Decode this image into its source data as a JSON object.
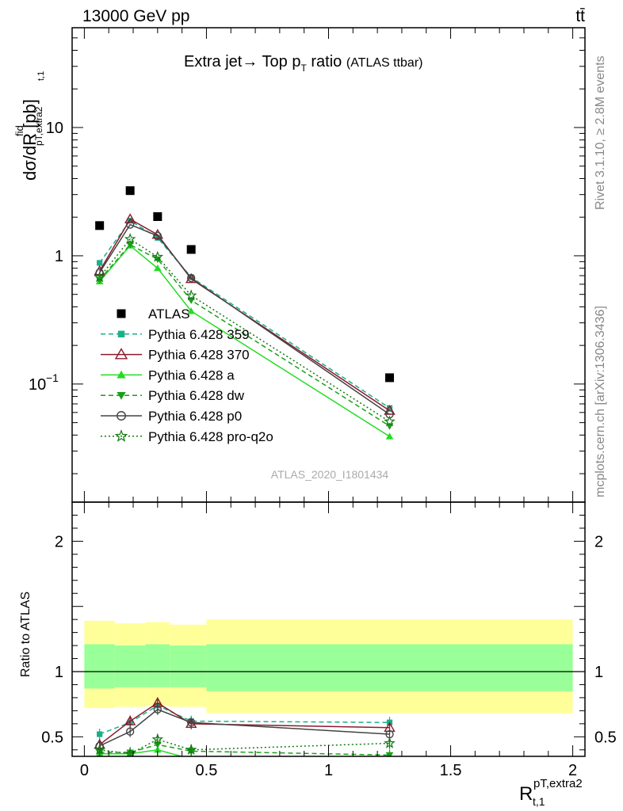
{
  "header": {
    "energy_label": "13000 GeV pp",
    "process_label": "tt̄",
    "title_main": "Extra jet→ Top p",
    "title_sub": "T",
    "title_tail": " ratio",
    "title_paren": "(ATLAS ttbar)",
    "y_axis_label": "dσ/dR [pb]",
    "y_axis_fid": "fid",
    "y_axis_pt": "pT,extra2",
    "y_axis_t1": "t,1",
    "watermark": "ATLAS_2020_I1801434",
    "side_rivet": "Rivet 3.1.10, ≥ 2.8M events",
    "side_mcplots": "mcplots.cern.ch [arXiv:1306.3436]",
    "ratio_ylabel": "Ratio to ATLAS",
    "x_label_main": "R",
    "x_label_sup": "pT,extra2",
    "x_label_sub": "t,1"
  },
  "chart_data": [
    {
      "type": "scatter",
      "panel": "main",
      "yscale": "log",
      "ylim": [
        0.012,
        60
      ],
      "xlim": [
        -0.05,
        2.05
      ],
      "yticks": [
        {
          "v": 0.1,
          "base": "10",
          "exp": "−1"
        },
        {
          "v": 1,
          "label": "1"
        },
        {
          "v": 10,
          "label": "10"
        }
      ],
      "x": [
        0.0625,
        0.1875,
        0.3,
        0.4375,
        1.25
      ],
      "series": [
        {
          "name": "ATLAS",
          "color": "#000000",
          "marker": "square",
          "line": "none",
          "values": [
            1.72,
            3.22,
            2.02,
            1.12,
            0.112
          ]
        },
        {
          "name": "Pythia 6.428 359",
          "color": "#19b08a",
          "marker": "smallsquare",
          "line": "dashed",
          "values": [
            0.88,
            1.88,
            1.38,
            0.68,
            0.065
          ]
        },
        {
          "name": "Pythia 6.428 370",
          "color": "#8b1a2b",
          "marker": "open-triangle",
          "line": "solid",
          "values": [
            0.76,
            1.93,
            1.46,
            0.66,
            0.062
          ]
        },
        {
          "name": "Pythia 6.428 a",
          "color": "#22dd22",
          "marker": "filled-triangle",
          "line": "solid",
          "values": [
            0.63,
            1.2,
            0.8,
            0.37,
            0.039
          ]
        },
        {
          "name": "Pythia 6.428 dw",
          "color": "#18a018",
          "marker": "filled-down-triangle",
          "line": "dashed",
          "values": [
            0.65,
            1.22,
            0.94,
            0.45,
            0.047
          ]
        },
        {
          "name": "Pythia 6.428 p0",
          "color": "#444444",
          "marker": "open-circle",
          "line": "solid",
          "values": [
            0.74,
            1.75,
            1.43,
            0.67,
            0.058
          ]
        },
        {
          "name": "Pythia 6.428 pro-q2o",
          "color": "#127a12",
          "marker": "star",
          "line": "dotted",
          "values": [
            0.68,
            1.35,
            0.98,
            0.49,
            0.051
          ]
        }
      ]
    },
    {
      "type": "line",
      "panel": "ratio",
      "ylim": [
        0.35,
        2.3
      ],
      "yticks": [
        {
          "v": 0.5,
          "label": "0.5"
        },
        {
          "v": 1,
          "label": "1"
        },
        {
          "v": 2,
          "label": "2"
        }
      ],
      "xticks": [
        {
          "v": 0,
          "label": "0"
        },
        {
          "v": 0.5,
          "label": "0.5"
        },
        {
          "v": 1,
          "label": "1"
        },
        {
          "v": 1.5,
          "label": "1.5"
        },
        {
          "v": 2,
          "label": "2"
        }
      ],
      "bins": [
        [
          0,
          0.125
        ],
        [
          0.125,
          0.25
        ],
        [
          0.25,
          0.35
        ],
        [
          0.35,
          0.5
        ],
        [
          0.5,
          2.0
        ]
      ],
      "band_outer": [
        [
          0.72,
          1.39
        ],
        [
          0.73,
          1.37
        ],
        [
          0.74,
          1.38
        ],
        [
          0.73,
          1.36
        ],
        [
          0.68,
          1.4
        ]
      ],
      "band_inner": [
        [
          0.87,
          1.21
        ],
        [
          0.88,
          1.2
        ],
        [
          0.88,
          1.21
        ],
        [
          0.88,
          1.2
        ],
        [
          0.85,
          1.21
        ]
      ],
      "x": [
        0.0625,
        0.1875,
        0.3,
        0.4375,
        1.25
      ],
      "series": [
        {
          "name": "Pythia 6.428 359",
          "values": [
            0.52,
            0.61,
            0.74,
            0.62,
            0.61
          ]
        },
        {
          "name": "Pythia 6.428 370",
          "values": [
            0.44,
            0.62,
            0.76,
            0.6,
            0.57
          ]
        },
        {
          "name": "Pythia 6.428 a",
          "values": [
            0.37,
            0.37,
            0.4,
            0.33,
            0.35
          ]
        },
        {
          "name": "Pythia 6.428 dw",
          "values": [
            0.38,
            0.38,
            0.44,
            0.39,
            0.36
          ]
        },
        {
          "name": "Pythia 6.428 p0",
          "values": [
            0.43,
            0.54,
            0.71,
            0.61,
            0.52
          ]
        },
        {
          "name": "Pythia 6.428 pro-q2o",
          "values": [
            0.4,
            0.37,
            0.48,
            0.4,
            0.45
          ]
        }
      ]
    }
  ]
}
